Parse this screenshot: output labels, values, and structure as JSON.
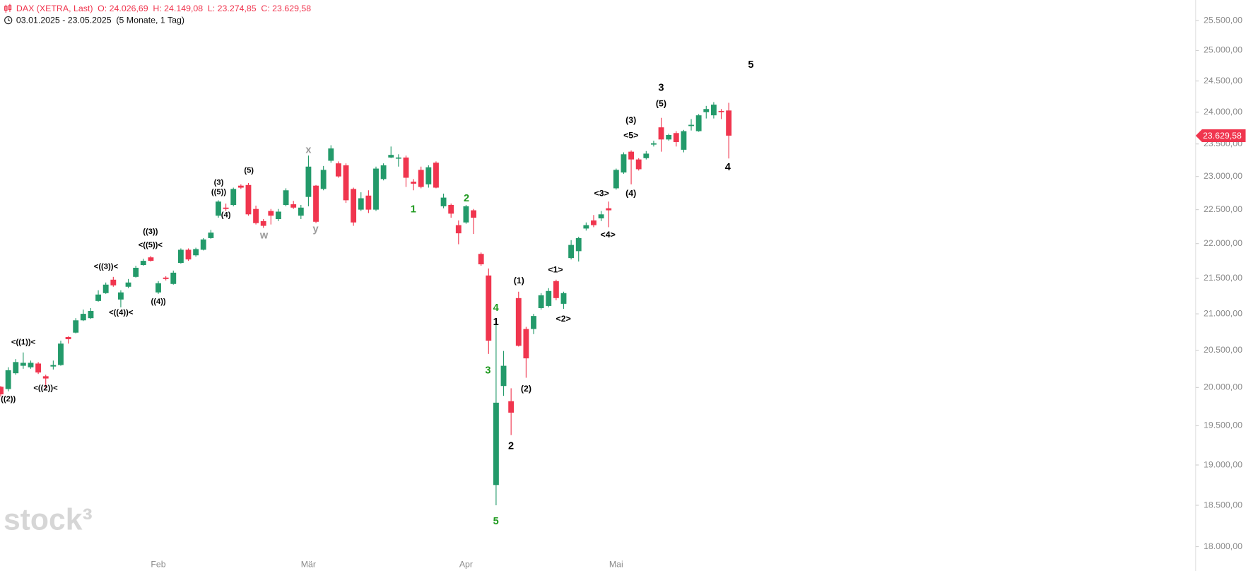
{
  "chart_data": {
    "type": "candlestick",
    "title": "DAX (XETRA, Last)",
    "ohlc_labels": [
      "O: 24.026,69",
      "H: 24.149,08",
      "L: 23.274,85",
      "C: 23.629,58"
    ],
    "subtitle": "03.01.2025 - 23.05.2025",
    "period": "(5 Monate, 1 Tag)",
    "watermark": "stock³",
    "up_color": "#239a6a",
    "down_color": "#f0354e",
    "log_scale": true,
    "ylim": [
      17890,
      25850
    ],
    "yticks": [
      {
        "value": 18000,
        "label": "18.000,00"
      },
      {
        "value": 18500,
        "label": "18.500,00"
      },
      {
        "value": 19000,
        "label": "19.000,00"
      },
      {
        "value": 19500,
        "label": "19.500,00"
      },
      {
        "value": 20000,
        "label": "20.000,00"
      },
      {
        "value": 20500,
        "label": "20.500,00"
      },
      {
        "value": 21000,
        "label": "21.000,00"
      },
      {
        "value": 21500,
        "label": "21.500,00"
      },
      {
        "value": 22000,
        "label": "22.000,00"
      },
      {
        "value": 22500,
        "label": "22.500,00"
      },
      {
        "value": 23000,
        "label": "23.000,00"
      },
      {
        "value": 23500,
        "label": "23.500,00"
      },
      {
        "value": 24000,
        "label": "24.000,00"
      },
      {
        "value": 24500,
        "label": "24.500,00"
      },
      {
        "value": 25000,
        "label": "25.000,00"
      },
      {
        "value": 25500,
        "label": "25.500,00"
      }
    ],
    "price_tag": {
      "value": 23629.58,
      "label": "23.629,58"
    },
    "categories": [
      null,
      null,
      null,
      null,
      null,
      null,
      null,
      null,
      null,
      null,
      null,
      null,
      null,
      null,
      null,
      null,
      null,
      null,
      null,
      null,
      null,
      "Feb",
      null,
      null,
      null,
      null,
      null,
      null,
      null,
      null,
      null,
      null,
      null,
      null,
      null,
      null,
      null,
      null,
      null,
      null,
      null,
      "Mär",
      null,
      null,
      null,
      null,
      null,
      null,
      null,
      null,
      null,
      null,
      null,
      null,
      null,
      null,
      null,
      null,
      null,
      null,
      null,
      null,
      "Apr",
      null,
      null,
      null,
      null,
      null,
      null,
      null,
      null,
      null,
      null,
      null,
      null,
      null,
      null,
      null,
      null,
      null,
      null,
      null,
      "Mai",
      null,
      null,
      null,
      null,
      null,
      null,
      null,
      null,
      null,
      null,
      null,
      null,
      null,
      null,
      null
    ],
    "open": [
      20010,
      19980,
      20190,
      20290,
      20270,
      20320,
      20150,
      20280,
      20300,
      20680,
      20740,
      20910,
      20940,
      21180,
      21290,
      21480,
      21200,
      21380,
      21520,
      21690,
      21800,
      21300,
      21510,
      21420,
      21720,
      21910,
      21830,
      21910,
      22080,
      22410,
      22530,
      22570,
      22860,
      22870,
      22510,
      22330,
      22480,
      22360,
      22570,
      22580,
      22410,
      22690,
      22860,
      22810,
      23240,
      23200,
      23170,
      22810,
      22500,
      22710,
      22500,
      22960,
      23290,
      23280,
      23290,
      22920,
      23100,
      22880,
      23210,
      22550,
      22570,
      22270,
      22310,
      22490,
      21850,
      21540,
      18750,
      20020,
      19820,
      21220,
      20790,
      20790,
      21080,
      21110,
      21460,
      21140,
      21790,
      21890,
      22220,
      22340,
      22370,
      22520,
      22820,
      23060,
      23380,
      23260,
      23280,
      23490,
      23760,
      23570,
      23670,
      23410,
      23780,
      23700,
      24000,
      23950,
      24020,
      24026.69
    ],
    "high": [
      20020,
      20270,
      20380,
      20470,
      20360,
      20340,
      20170,
      20360,
      20630,
      20690,
      20940,
      21060,
      21080,
      21330,
      21440,
      21520,
      21330,
      21490,
      21680,
      21780,
      21820,
      21460,
      21530,
      21610,
      21930,
      21930,
      21940,
      22080,
      22200,
      22640,
      22590,
      22830,
      22880,
      22900,
      22560,
      22360,
      22510,
      22510,
      22820,
      22630,
      22570,
      23320,
      22870,
      23160,
      23480,
      23230,
      23200,
      22830,
      22760,
      22790,
      23150,
      23200,
      23460,
      23340,
      23320,
      22960,
      23150,
      23170,
      23230,
      22740,
      22590,
      22340,
      22570,
      22510,
      21870,
      21640,
      20850,
      20490,
      19990,
      21310,
      20820,
      21000,
      21290,
      21360,
      21480,
      21310,
      22050,
      22100,
      22310,
      22420,
      22480,
      22620,
      23120,
      23370,
      23400,
      23280,
      23390,
      23550,
      23910,
      23660,
      23700,
      23720,
      23890,
      23970,
      24100,
      24160,
      24050,
      24149.08
    ],
    "low": [
      19880,
      19950,
      20170,
      20250,
      20250,
      20180,
      19990,
      20240,
      20290,
      20590,
      20730,
      20900,
      20930,
      21170,
      21280,
      21380,
      21090,
      21360,
      21510,
      21680,
      21740,
      21280,
      21470,
      21410,
      21710,
      21750,
      21810,
      21900,
      22070,
      22380,
      22480,
      22550,
      22810,
      22410,
      22280,
      22230,
      22280,
      22330,
      22550,
      22510,
      22360,
      22550,
      22300,
      22790,
      23210,
      22980,
      22600,
      22260,
      22480,
      22450,
      22480,
      22940,
      23280,
      23150,
      22840,
      22790,
      22820,
      22830,
      22820,
      22520,
      22380,
      21990,
      22290,
      22140,
      21680,
      20450,
      18500,
      19890,
      19380,
      20550,
      20130,
      20720,
      21060,
      21090,
      21190,
      21070,
      21770,
      21740,
      22190,
      22240,
      22330,
      22240,
      22800,
      23040,
      22880,
      23090,
      23260,
      23460,
      23380,
      23550,
      23460,
      23370,
      23710,
      23690,
      23900,
      23900,
      23890,
      23274.85
    ],
    "close": [
      19910,
      20230,
      20340,
      20330,
      20330,
      20200,
      20120,
      20300,
      20590,
      20650,
      20910,
      21000,
      21040,
      21270,
      21410,
      21400,
      21300,
      21440,
      21650,
      21750,
      21750,
      21430,
      21490,
      21580,
      21910,
      21770,
      21920,
      22060,
      22160,
      22620,
      22510,
      22810,
      22830,
      22430,
      22300,
      22260,
      22410,
      22470,
      22790,
      22530,
      22530,
      23150,
      22320,
      23100,
      23430,
      23000,
      22640,
      22310,
      22670,
      22500,
      23120,
      23170,
      23330,
      23290,
      22980,
      22890,
      22840,
      23140,
      22830,
      22680,
      22440,
      22150,
      22550,
      22380,
      21700,
      20630,
      19800,
      20290,
      19670,
      20560,
      20390,
      20970,
      21260,
      21320,
      21220,
      21290,
      21980,
      22080,
      22270,
      22270,
      22430,
      22490,
      23100,
      23340,
      23260,
      23110,
      23350,
      23510,
      23570,
      23640,
      23530,
      23700,
      23800,
      23950,
      24050,
      24120,
      24000,
      23629.58
    ],
    "annotations": [
      {
        "text": "((2))",
        "color": "#000000"
      },
      {
        "text": "<((1))<",
        "color": "#000000"
      },
      {
        "text": "<((2))<",
        "color": "#000000"
      },
      {
        "text": "<((3))<",
        "color": "#000000"
      },
      {
        "text": "<((4))<",
        "color": "#000000"
      },
      {
        "text": "((3))",
        "color": "#000000"
      },
      {
        "text": "<((5))<",
        "color": "#000000"
      },
      {
        "text": "((4))",
        "color": "#000000"
      },
      {
        "text": "(3)",
        "color": "#000000"
      },
      {
        "text": "((5))",
        "color": "#000000"
      },
      {
        "text": "(4)",
        "color": "#000000"
      },
      {
        "text": "(5)",
        "color": "#000000"
      },
      {
        "text": "w",
        "color": "#9a9a9a"
      },
      {
        "text": "x",
        "color": "#9a9a9a"
      },
      {
        "text": "y",
        "color": "#9a9a9a"
      },
      {
        "text": "1",
        "color": "#1f9a1f"
      },
      {
        "text": "2",
        "color": "#1f9a1f"
      },
      {
        "text": "3",
        "color": "#1f9a1f"
      },
      {
        "text": "4",
        "color": "#1f9a1f"
      },
      {
        "text": "5",
        "color": "#1f9a1f"
      },
      {
        "text": "1",
        "color": "#000000"
      },
      {
        "text": "2",
        "color": "#000000"
      },
      {
        "text": "(1)",
        "color": "#000000"
      },
      {
        "text": "(2)",
        "color": "#000000"
      },
      {
        "text": "<1>",
        "color": "#000000"
      },
      {
        "text": "<2>",
        "color": "#000000"
      },
      {
        "text": "<3>",
        "color": "#000000"
      },
      {
        "text": "<4>",
        "color": "#000000"
      },
      {
        "text": "(3)",
        "color": "#000000"
      },
      {
        "text": "<5>",
        "color": "#000000"
      },
      {
        "text": "(4)",
        "color": "#000000"
      },
      {
        "text": "3",
        "color": "#000000"
      },
      {
        "text": "(5)",
        "color": "#000000"
      },
      {
        "text": "4",
        "color": "#000000"
      },
      {
        "text": "5",
        "color": "#000000"
      }
    ]
  }
}
